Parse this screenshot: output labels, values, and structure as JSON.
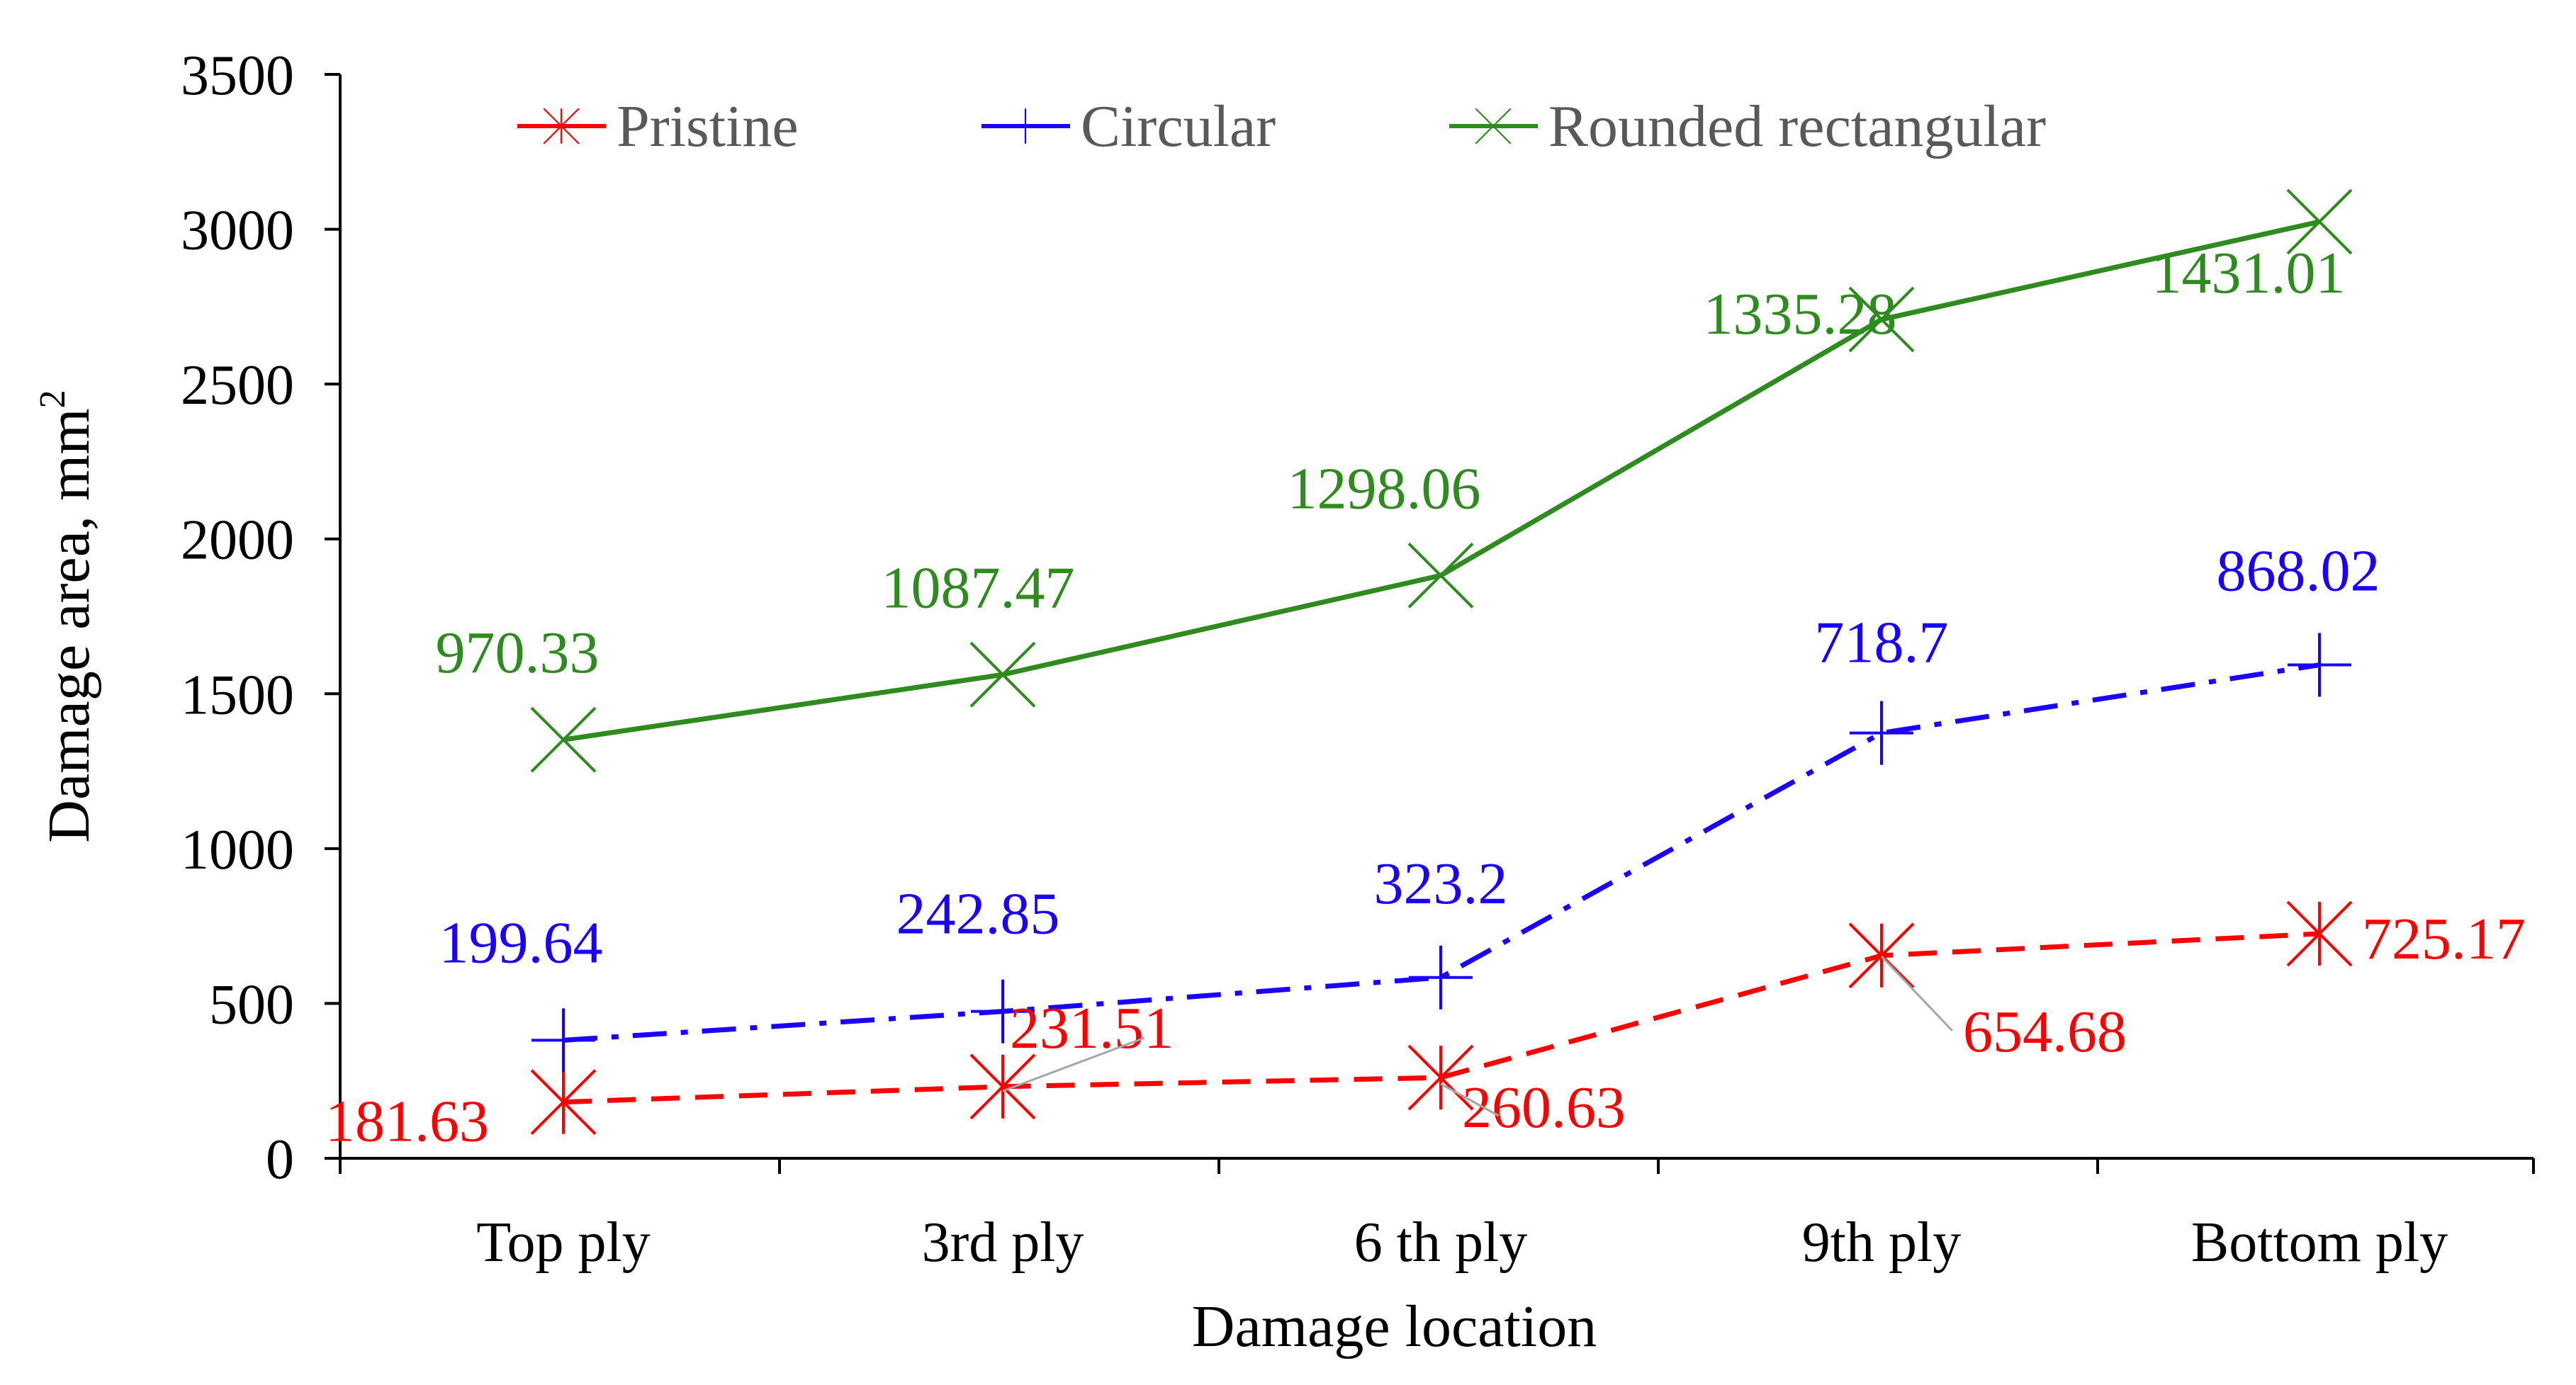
{
  "chart_data": {
    "type": "line",
    "title": "",
    "xlabel": "Damage location",
    "ylabel": "Damage area, mm",
    "ylabel_superscript": "2",
    "categories": [
      "Top ply",
      "3rd ply",
      "6 th ply",
      "9th ply",
      "Bottom ply"
    ],
    "ylim": [
      0,
      3500
    ],
    "yticks": [
      0,
      500,
      1000,
      1500,
      2000,
      2500,
      3000,
      3500
    ],
    "grid": false,
    "legend_position": "top",
    "series": [
      {
        "name": "Pristine",
        "color": "#ff0000",
        "line_style": "dashed",
        "marker": "asterisk",
        "values": [
          181.63,
          231.51,
          260.63,
          654.68,
          725.17
        ],
        "labels": [
          "181.63",
          "231.51",
          "260.63",
          "654.68",
          "725.17"
        ]
      },
      {
        "name": "Circular",
        "color": "#1a00ff",
        "line_style": "dash-dot",
        "marker": "plus",
        "values": [
          381.27,
          474.36,
          583.83,
          1373.38,
          1593.19
        ],
        "labels": [
          "199.64",
          "242.85",
          "323.2",
          "718.7",
          "868.02"
        ]
      },
      {
        "name": "Rounded rectangular",
        "color": "#2e8b1e",
        "line_style": "solid",
        "marker": "x",
        "values": [
          1351.6,
          1561.83,
          1881.89,
          2708.66,
          3024.2
        ],
        "labels": [
          "970.33",
          "1087.47",
          "1298.06",
          "1335.28",
          "1431.01"
        ]
      }
    ]
  }
}
